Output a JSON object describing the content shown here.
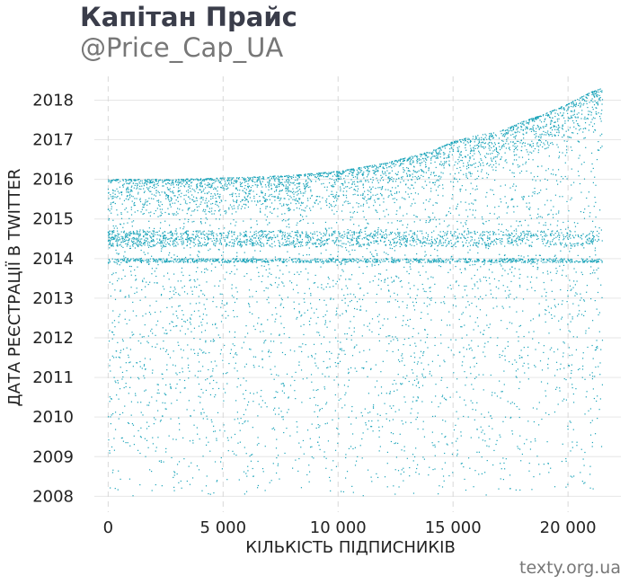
{
  "header": {
    "title": "Капітан Прайс",
    "subtitle": "@Price_Cap_UA"
  },
  "footer": {
    "source": "texty.org.ua"
  },
  "colors": {
    "points": "#17a2b8",
    "title": "#3a3d4a",
    "subtitle": "#777777",
    "grid": "#e6e6e6",
    "text": "#222222"
  },
  "chart_data": {
    "type": "scatter",
    "xlabel": "КІЛЬКІСТЬ ПІДПИСНИКІВ",
    "ylabel": "ДАТА РЕЄСТРАЦІЇ В TWITTER",
    "xlim": [
      -600,
      22300
    ],
    "ylim": [
      2007.6,
      2018.6
    ],
    "x_ticks": [
      0,
      5000,
      10000,
      15000,
      20000
    ],
    "x_tick_labels": [
      "0",
      "5 000",
      "10 000",
      "15 000",
      "20 000"
    ],
    "y_ticks": [
      2008,
      2009,
      2010,
      2011,
      2012,
      2013,
      2014,
      2015,
      2016,
      2017,
      2018
    ],
    "y_tick_labels": [
      "2008",
      "2009",
      "2010",
      "2011",
      "2012",
      "2013",
      "2014",
      "2015",
      "2016",
      "2017",
      "2018"
    ],
    "grid": true,
    "series": [
      {
        "marker_color": "#17a2b8",
        "x_range": [
          0,
          21500
        ],
        "y_range": [
          2008.0,
          2018.3
        ],
        "upper_envelope": {
          "x": [
            0,
            3000,
            6000,
            8000,
            10000,
            12000,
            14000,
            15000,
            16000,
            17000,
            18000,
            19000,
            20000,
            21000,
            21500
          ],
          "y": [
            2016.0,
            2016.0,
            2016.05,
            2016.1,
            2016.2,
            2016.4,
            2016.7,
            2016.95,
            2017.1,
            2017.2,
            2017.45,
            2017.65,
            2017.9,
            2018.2,
            2018.3
          ]
        },
        "dense_bands": [
          {
            "y_range": [
              2014.3,
              2014.7
            ],
            "x_range": [
              0,
              7000
            ]
          },
          {
            "y_range": [
              2013.9,
              2014.0
            ],
            "x_range": [
              0,
              21500
            ]
          }
        ]
      }
    ]
  }
}
